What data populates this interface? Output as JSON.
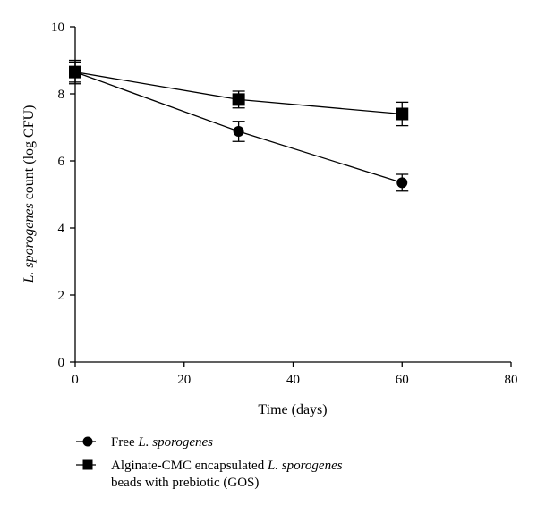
{
  "chart_data": {
    "type": "line",
    "xlabel": "Time (days)",
    "ylabel": {
      "italic": "L. sporogenes",
      "rest": " count (log CFU)"
    },
    "xlim": [
      0,
      80
    ],
    "ylim": [
      0,
      10
    ],
    "xticks": [
      0,
      20,
      40,
      60,
      80
    ],
    "yticks": [
      0,
      2,
      4,
      6,
      8,
      10
    ],
    "grid": false,
    "legend_position": "bottom-left",
    "series": [
      {
        "name": "Free L. sporogenes",
        "legend_label": {
          "plain": "Free ",
          "italic": "L. sporogenes"
        },
        "marker": "circle",
        "x": [
          0,
          30,
          60
        ],
        "y": [
          8.65,
          6.88,
          5.35
        ],
        "error": [
          0.3,
          0.3,
          0.25
        ]
      },
      {
        "name": "Alginate-CMC encapsulated L. sporogenes beads with prebiotic (GOS)",
        "legend_label": {
          "plain": "Alginate-CMC encapsulated ",
          "italic": "L. sporogenes",
          "line2": "beads with prebiotic (GOS)"
        },
        "marker": "square",
        "x": [
          0,
          30,
          60
        ],
        "y": [
          8.65,
          7.83,
          7.4
        ],
        "error": [
          0.35,
          0.25,
          0.35
        ]
      }
    ]
  }
}
